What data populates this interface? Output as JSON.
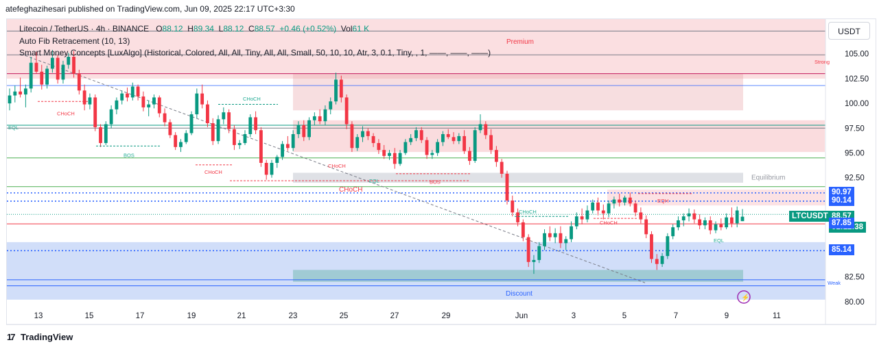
{
  "header": {
    "attribution": "atefeghazihesari published on TradingView.com, Jun 09, 2025 22:17 UTC+3:30"
  },
  "legend": {
    "symbol": "Litecoin / TetherUS · 4h · BINANCE",
    "open_label": "O",
    "open": "88.12",
    "high_label": "H",
    "high": "89.34",
    "low_label": "L",
    "low": "88.12",
    "close_label": "C",
    "close": "88.57",
    "change": "+0.46 (+0.52%)",
    "vol_label": "Vol",
    "vol": "61 K",
    "indicator_1": "Auto Fib Retracement (10, 13)",
    "indicator_2": "Smart Money Concepts [LuxAlgo] (Historical, Colored, All, All, Tiny, All, All, Small, 50, 10, 10, Atr, 3, 0.1, Tiny, , 1, ——, ——, ——)"
  },
  "toolbar": {
    "currency_button": "USDT"
  },
  "footer": {
    "brand": "TradingView"
  },
  "colors": {
    "up": "#089981",
    "down": "#f23645",
    "premium_zone": "#f7c5c8",
    "discount_zone": "#b3c8f5",
    "equilibrium_zone": "#d1d4dc",
    "fib_blue": "#2962ff",
    "fib_green": "#4caf50",
    "text_green": "#22ab94"
  },
  "chart_data": {
    "type": "candlestick",
    "symbol": "LTCUSDT",
    "timeframe": "4h",
    "y_axis": {
      "ticks": [
        "105.00",
        "102.50",
        "100.00",
        "97.50",
        "95.00",
        "92.50",
        "82.50",
        "80.00"
      ],
      "ylim": [
        79.5,
        108.5
      ]
    },
    "x_axis": {
      "ticks": [
        "13",
        "15",
        "17",
        "19",
        "21",
        "23",
        "25",
        "27",
        "29",
        "Jun",
        "3",
        "5",
        "7",
        "9",
        "11"
      ]
    },
    "price_labels": [
      {
        "value": "90.97",
        "color": "#2962ff"
      },
      {
        "value": "90.14",
        "color": "#2962ff"
      },
      {
        "value": "LTCUSDT",
        "color": "#089981"
      },
      {
        "value": "88.57",
        "color": "#089981"
      },
      {
        "value": "01:12:38",
        "color": "#089981"
      },
      {
        "value": "87.85",
        "color": "#2962ff"
      },
      {
        "value": "85.14",
        "color": "#2962ff"
      }
    ],
    "zones": [
      {
        "label": "Premium",
        "from": 102.5,
        "to": 108.5
      },
      {
        "label": "Equilibrium",
        "from": 92.0,
        "to": 93.0
      },
      {
        "label": "Discount",
        "from": 81.0,
        "to": 82.6
      }
    ],
    "annotations": [
      "CHoCH",
      "EQL",
      "BOS",
      "CHoCH",
      "CHoCH",
      "BOS",
      "CHoCH",
      "CHoCH",
      "EQL",
      "CHoCH",
      "CHoCH",
      "EQH",
      "EQL",
      "Strong",
      "Weak"
    ],
    "candles_ohlc": [
      [
        100.0,
        101.5,
        99.3,
        100.8
      ],
      [
        100.8,
        101.8,
        100.1,
        101.2
      ],
      [
        101.2,
        102.6,
        100.6,
        100.9
      ],
      [
        100.9,
        101.9,
        99.6,
        101.5
      ],
      [
        101.5,
        104.7,
        101.1,
        104.1
      ],
      [
        104.1,
        105.2,
        103.0,
        103.2
      ],
      [
        103.2,
        103.9,
        101.4,
        101.9
      ],
      [
        101.9,
        103.8,
        101.5,
        103.5
      ],
      [
        103.5,
        105.4,
        103.1,
        104.6
      ],
      [
        104.6,
        104.9,
        102.0,
        102.4
      ],
      [
        102.4,
        104.3,
        102.0,
        103.9
      ],
      [
        103.9,
        105.1,
        103.5,
        104.7
      ],
      [
        104.7,
        105.3,
        102.6,
        103.0
      ],
      [
        103.0,
        103.4,
        100.9,
        101.3
      ],
      [
        101.3,
        101.9,
        99.3,
        99.9
      ],
      [
        99.9,
        101.0,
        99.4,
        100.6
      ],
      [
        100.6,
        100.9,
        97.2,
        97.6
      ],
      [
        97.6,
        97.9,
        95.6,
        96.0
      ],
      [
        96.0,
        98.2,
        95.8,
        97.9
      ],
      [
        97.9,
        99.8,
        97.5,
        99.4
      ],
      [
        99.4,
        100.6,
        98.9,
        100.3
      ],
      [
        100.3,
        101.3,
        99.9,
        101.0
      ],
      [
        101.0,
        101.6,
        100.2,
        100.6
      ],
      [
        100.6,
        102.1,
        100.3,
        101.7
      ],
      [
        101.7,
        101.9,
        100.3,
        100.7
      ],
      [
        100.7,
        101.2,
        99.2,
        99.6
      ],
      [
        99.6,
        100.3,
        98.7,
        99.9
      ],
      [
        99.9,
        100.9,
        99.5,
        100.6
      ],
      [
        100.6,
        100.8,
        98.6,
        99.0
      ],
      [
        99.0,
        99.5,
        97.7,
        98.1
      ],
      [
        98.1,
        98.4,
        96.5,
        96.8
      ],
      [
        96.8,
        97.1,
        95.3,
        95.6
      ],
      [
        95.6,
        96.4,
        95.1,
        96.1
      ],
      [
        96.1,
        97.3,
        95.9,
        97.0
      ],
      [
        97.0,
        99.2,
        96.8,
        98.9
      ],
      [
        98.9,
        101.5,
        98.5,
        101.0
      ],
      [
        101.0,
        101.9,
        99.5,
        99.9
      ],
      [
        99.9,
        100.3,
        97.6,
        98.0
      ],
      [
        98.0,
        98.5,
        95.8,
        96.2
      ],
      [
        96.2,
        98.8,
        95.9,
        98.4
      ],
      [
        98.4,
        99.6,
        97.9,
        99.1
      ],
      [
        99.1,
        99.4,
        97.0,
        97.4
      ],
      [
        97.4,
        97.8,
        95.3,
        95.8
      ],
      [
        95.8,
        96.3,
        95.4,
        96.0
      ],
      [
        96.0,
        97.3,
        95.8,
        96.9
      ],
      [
        96.9,
        98.9,
        96.6,
        98.6
      ],
      [
        98.6,
        99.2,
        96.9,
        97.3
      ],
      [
        97.3,
        97.6,
        93.6,
        94.0
      ],
      [
        94.0,
        94.3,
        92.3,
        92.8
      ],
      [
        92.8,
        94.3,
        92.5,
        94.0
      ],
      [
        94.0,
        94.8,
        93.5,
        94.6
      ],
      [
        94.6,
        96.2,
        94.3,
        95.9
      ],
      [
        95.9,
        96.7,
        95.2,
        95.5
      ],
      [
        95.5,
        97.3,
        95.2,
        96.9
      ],
      [
        96.9,
        98.2,
        96.5,
        97.8
      ],
      [
        97.8,
        98.3,
        96.2,
        96.6
      ],
      [
        96.6,
        98.6,
        96.3,
        98.3
      ],
      [
        98.3,
        99.1,
        97.8,
        98.7
      ],
      [
        98.7,
        99.4,
        97.9,
        98.2
      ],
      [
        98.2,
        99.8,
        97.8,
        99.4
      ],
      [
        99.4,
        100.6,
        98.9,
        100.2
      ],
      [
        100.2,
        103.1,
        99.9,
        102.4
      ],
      [
        102.4,
        102.8,
        100.1,
        100.6
      ],
      [
        100.6,
        100.9,
        97.4,
        97.9
      ],
      [
        97.9,
        98.2,
        95.1,
        95.5
      ],
      [
        95.5,
        96.9,
        95.2,
        96.6
      ],
      [
        96.6,
        97.7,
        96.1,
        97.2
      ],
      [
        97.2,
        97.5,
        96.3,
        96.7
      ],
      [
        96.7,
        97.0,
        95.6,
        96.0
      ],
      [
        96.0,
        96.4,
        94.9,
        95.3
      ],
      [
        95.3,
        95.8,
        94.4,
        94.7
      ],
      [
        94.7,
        95.3,
        94.3,
        95.0
      ],
      [
        95.0,
        95.5,
        93.4,
        93.9
      ],
      [
        93.9,
        95.3,
        93.7,
        95.0
      ],
      [
        95.0,
        96.4,
        94.8,
        96.1
      ],
      [
        96.1,
        96.9,
        95.8,
        96.5
      ],
      [
        96.5,
        97.6,
        96.2,
        97.3
      ],
      [
        97.3,
        97.6,
        96.0,
        96.3
      ],
      [
        96.3,
        96.6,
        94.4,
        94.8
      ],
      [
        94.8,
        95.3,
        94.4,
        95.0
      ],
      [
        95.0,
        96.4,
        94.7,
        96.1
      ],
      [
        96.1,
        97.2,
        95.7,
        96.9
      ],
      [
        96.9,
        97.4,
        96.4,
        96.6
      ],
      [
        96.6,
        97.1,
        95.9,
        96.2
      ],
      [
        96.2,
        97.0,
        95.9,
        96.7
      ],
      [
        96.7,
        97.3,
        94.9,
        95.2
      ],
      [
        95.2,
        95.6,
        93.8,
        94.2
      ],
      [
        94.2,
        97.6,
        94.0,
        97.3
      ],
      [
        97.3,
        98.9,
        97.0,
        97.9
      ],
      [
        97.9,
        98.2,
        96.4,
        96.8
      ],
      [
        96.8,
        97.4,
        94.9,
        95.3
      ],
      [
        95.3,
        95.7,
        93.6,
        94.1
      ],
      [
        94.1,
        94.4,
        92.5,
        92.9
      ],
      [
        92.9,
        93.2,
        89.8,
        90.2
      ],
      [
        90.2,
        90.7,
        88.6,
        89.0
      ],
      [
        89.0,
        89.4,
        87.6,
        88.0
      ],
      [
        88.0,
        88.3,
        86.1,
        86.5
      ],
      [
        86.5,
        86.8,
        83.5,
        84.0
      ],
      [
        84.0,
        84.7,
        82.8,
        84.2
      ],
      [
        84.2,
        86.0,
        83.9,
        85.6
      ],
      [
        85.6,
        87.3,
        85.2,
        86.9
      ],
      [
        86.9,
        87.6,
        86.1,
        86.5
      ],
      [
        86.5,
        87.4,
        85.9,
        86.9
      ],
      [
        86.9,
        87.6,
        85.4,
        85.9
      ],
      [
        85.9,
        86.6,
        85.2,
        86.3
      ],
      [
        86.3,
        88.1,
        86.0,
        87.6
      ],
      [
        87.6,
        89.0,
        87.3,
        88.6
      ],
      [
        88.6,
        89.4,
        87.8,
        88.3
      ],
      [
        88.3,
        89.7,
        88.0,
        89.2
      ],
      [
        89.2,
        90.3,
        88.9,
        90.0
      ],
      [
        90.0,
        90.5,
        88.7,
        89.2
      ],
      [
        89.2,
        89.8,
        88.3,
        88.9
      ],
      [
        88.9,
        90.2,
        88.5,
        89.9
      ],
      [
        89.9,
        90.6,
        89.4,
        90.3
      ],
      [
        90.3,
        90.9,
        89.6,
        90.0
      ],
      [
        90.0,
        90.7,
        89.7,
        90.5
      ],
      [
        90.5,
        91.0,
        89.6,
        89.9
      ],
      [
        89.9,
        90.2,
        88.6,
        89.0
      ],
      [
        89.0,
        89.5,
        87.9,
        88.3
      ],
      [
        88.3,
        88.7,
        86.4,
        86.8
      ],
      [
        86.8,
        87.1,
        83.9,
        84.3
      ],
      [
        84.3,
        84.8,
        83.2,
        83.8
      ],
      [
        83.8,
        84.9,
        83.5,
        84.6
      ],
      [
        84.6,
        86.9,
        84.3,
        86.6
      ],
      [
        86.6,
        87.8,
        86.3,
        87.5
      ],
      [
        87.5,
        88.6,
        87.2,
        88.2
      ],
      [
        88.2,
        88.9,
        87.6,
        88.6
      ],
      [
        88.6,
        89.4,
        88.1,
        88.9
      ],
      [
        88.9,
        89.3,
        87.9,
        88.3
      ],
      [
        88.3,
        88.8,
        87.3,
        87.7
      ],
      [
        87.7,
        88.5,
        87.3,
        88.2
      ],
      [
        88.2,
        88.6,
        86.8,
        87.2
      ],
      [
        87.2,
        88.1,
        86.9,
        87.8
      ],
      [
        87.8,
        88.4,
        87.2,
        87.5
      ],
      [
        87.5,
        88.9,
        87.3,
        88.5
      ],
      [
        88.5,
        89.5,
        87.5,
        87.9
      ],
      [
        87.9,
        89.6,
        87.5,
        89.2
      ],
      [
        88.12,
        89.34,
        88.12,
        88.57
      ]
    ]
  }
}
